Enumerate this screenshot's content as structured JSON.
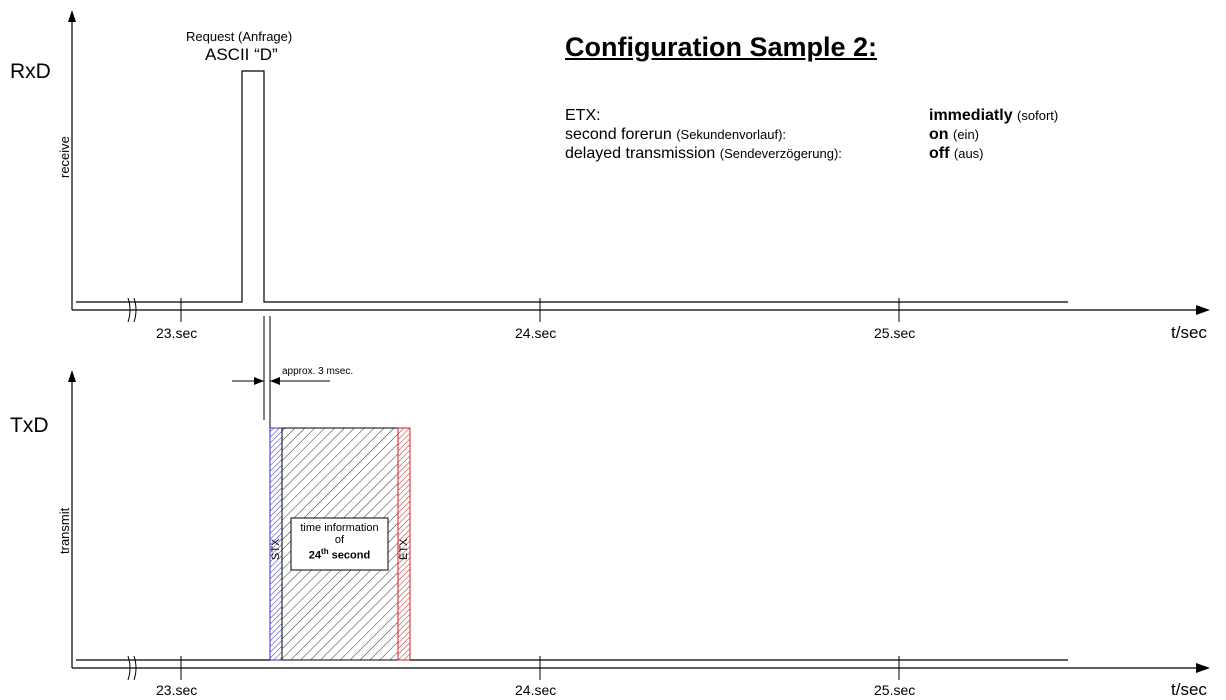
{
  "title": "Configuration Sample 2:",
  "config": {
    "rows": [
      {
        "key_main": "ETX:",
        "key_small": "",
        "val_bold": "immediatly",
        "val_small": "(sofort)"
      },
      {
        "key_main": "second forerun",
        "key_small": "(Sekundenvorlauf):",
        "val_bold": "on",
        "val_small": "(ein)"
      },
      {
        "key_main": "delayed transmission",
        "key_small": "(Sendeverzögerung):",
        "val_bold": "off",
        "val_small": "(aus)"
      }
    ]
  },
  "rxd": {
    "axis_name": "RxD",
    "vertical_label": "receive",
    "request_label": "Request (Anfrage)",
    "request_char": "ASCII “D”",
    "ticks": [
      "23.sec",
      "24.sec",
      "25.sec"
    ],
    "unit": "t/sec"
  },
  "txd": {
    "axis_name": "TxD",
    "vertical_label": "transmit",
    "delay_label": "approx. 3 msec.",
    "stx_label": "STX",
    "etx_label": "ETX",
    "box_line1": "time information",
    "box_line2": "of",
    "box_line3_num": "24",
    "box_line3_sup": "th",
    "box_line3_rest": "second",
    "ticks": [
      "23.sec",
      "24.sec",
      "25.sec"
    ],
    "unit": "t/sec"
  },
  "colors": {
    "stx": "#3030c0",
    "etx": "#d02020",
    "line": "#000000"
  }
}
